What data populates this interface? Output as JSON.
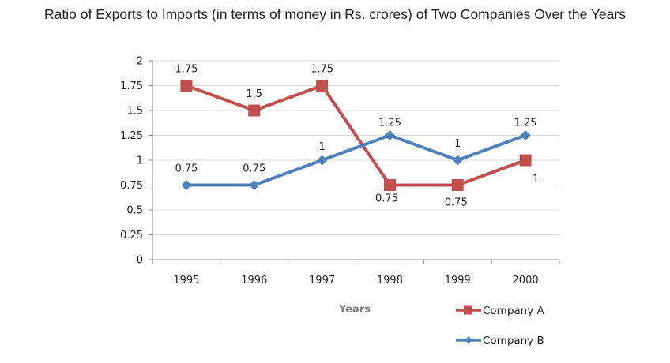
{
  "chart_data": {
    "type": "line",
    "title": "Ratio of Exports to Imports (in terms of money in Rs. crores) of Two Companies Over the Years",
    "xlabel": "Years",
    "ylabel": "",
    "categories": [
      "1995",
      "1996",
      "1997",
      "1998",
      "1999",
      "2000"
    ],
    "ylim": [
      0,
      2
    ],
    "yticks": [
      "0",
      "0.25",
      "0.5",
      "0.75",
      "1",
      "1.25",
      "1.5",
      "1.75",
      "2"
    ],
    "grid": true,
    "legend_position": "bottom-right",
    "series": [
      {
        "name": "Company A",
        "color": "#c0504d",
        "marker": "square",
        "values": [
          1.75,
          1.5,
          1.75,
          0.75,
          0.75,
          1
        ],
        "labels": [
          "1.75",
          "1.5",
          "1.75",
          "0.75",
          "0.75",
          "1"
        ]
      },
      {
        "name": "Company B",
        "color": "#4f81bd",
        "marker": "diamond",
        "values": [
          0.75,
          0.75,
          1,
          1.25,
          1,
          1.25
        ],
        "labels": [
          "0.75",
          "0.75",
          "1",
          "1.25",
          "1",
          "1.25"
        ]
      }
    ]
  }
}
